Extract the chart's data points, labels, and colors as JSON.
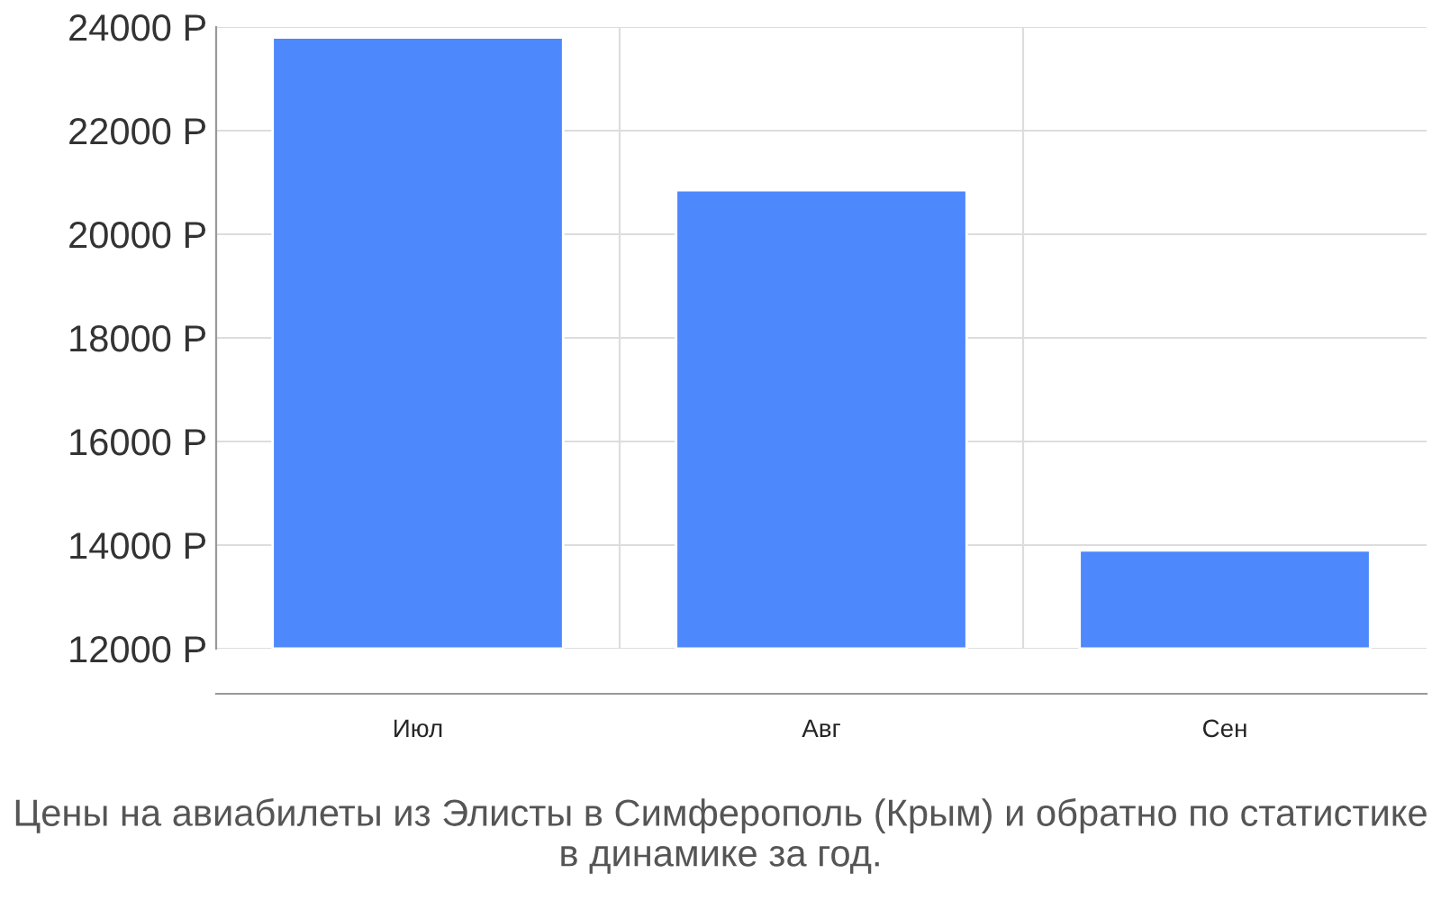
{
  "chart_data": {
    "type": "bar",
    "categories": [
      "Июл",
      "Авг",
      "Сен"
    ],
    "values": [
      23800,
      20850,
      13900
    ],
    "color": "#4d88fc",
    "ylim": [
      12000,
      24000
    ],
    "yticks": [
      {
        "value": 12000,
        "label": "12000 Р"
      },
      {
        "value": 14000,
        "label": "14000 Р"
      },
      {
        "value": 16000,
        "label": "16000 Р"
      },
      {
        "value": 18000,
        "label": "18000 Р"
      },
      {
        "value": 20000,
        "label": "20000 Р"
      },
      {
        "value": 22000,
        "label": "22000 Р"
      },
      {
        "value": 24000,
        "label": "24000 Р"
      }
    ],
    "grid": true,
    "annotations": [
      "Цены на авиабилеты из Элисты в Симферополь (Крым) и обратно по статистике в динамике за год."
    ]
  }
}
